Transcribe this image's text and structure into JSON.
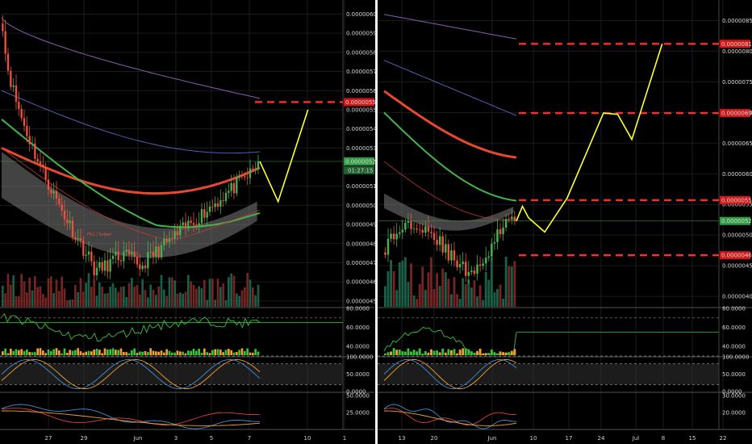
{
  "colors": {
    "background": "#000000",
    "grid": "#1b1b1b",
    "up_candle": "#4caf50",
    "down_candle": "#e8533f",
    "target_line": "#ff2a2a",
    "projection": "#ffff33",
    "price_label_current": "#2e9e44",
    "price_label_target": "#d01818",
    "ma_red": "#e8492e",
    "ma_green": "#45b34a",
    "ma_purple": "#8a5db0",
    "osc_green": "#37c437",
    "osc_orange": "#f0a030",
    "osc_blue": "#3f8fd8",
    "osc_red": "#e04040"
  },
  "chart_data": [
    {
      "type": "candlestick",
      "panel": "left",
      "price_axis_labels": [
        "0.00000600",
        "0.00000590",
        "0.00000580",
        "0.00000570",
        "0.00000560",
        "0.00000550",
        "0.00000540",
        "0.00000530",
        "0.00000510",
        "0.00000500",
        "0.00000490",
        "0.00000480",
        "0.00000470",
        "0.00000460",
        "0.00000450"
      ],
      "ylim": [
        4.47e-06,
        6.04e-06
      ],
      "current_price_label": "0.00000523",
      "countdown_label": "01:27:15",
      "target_price_label": "0.00000554",
      "target_levels": [
        5.54e-06
      ],
      "current_price": 5.23e-06,
      "projection_path": [
        [
          0,
          5.23e-06
        ],
        [
          0.22,
          5.02e-06
        ],
        [
          0.58,
          5.5e-06
        ]
      ],
      "x_tick_labels": [
        "27",
        "29",
        "Jun",
        "3",
        "5",
        "7",
        "10",
        "1"
      ],
      "annotation": "FR1 / Sniper",
      "ma_close": 5.01e-06,
      "stack_top": 4.92e-06,
      "stack_bottom": 4.84e-06,
      "rsi": {
        "axis_labels": [
          "80.0000",
          "60.0000",
          "40.0000"
        ],
        "ylim": [
          30,
          80
        ],
        "upper_band": 70,
        "lower_band": 30,
        "end_value": 65
      },
      "stoch": {
        "axis_labels": [
          "100.0000",
          "50.0000",
          "0.0000"
        ],
        "ylim": [
          0,
          100
        ],
        "upper_band": 80,
        "lower_band": 20
      },
      "dmi": {
        "axis_labels": [
          "50.0000",
          "25.0000"
        ],
        "ylim": [
          0,
          55
        ]
      }
    },
    {
      "type": "candlestick",
      "panel": "right",
      "price_axis_labels": [
        "0.00000850",
        "0.00000800",
        "0.00000750",
        "0.00000700",
        "0.00000650",
        "0.00000600",
        "0.00000550",
        "0.00000500",
        "0.00000450",
        "0.00000400"
      ],
      "ylim": [
        3.83e-06,
        8.73e-06
      ],
      "current_price_label": "0.00000523",
      "current_price": 5.23e-06,
      "target_price_labels": [
        "0.00000812",
        "0.00000699",
        "0.00000557",
        "0.00000467"
      ],
      "target_levels": [
        8.12e-06,
        6.99e-06,
        5.57e-06,
        4.67e-06
      ],
      "projection_path": [
        [
          0,
          5.23e-06
        ],
        [
          0.03,
          5.47e-06
        ],
        [
          0.06,
          5.28e-06
        ],
        [
          0.14,
          5.05e-06
        ],
        [
          0.25,
          5.6e-06
        ],
        [
          0.43,
          6.99e-06
        ],
        [
          0.5,
          6.97e-06
        ],
        [
          0.57,
          6.56e-06
        ],
        [
          0.72,
          8.12e-06
        ]
      ],
      "x_tick_labels": [
        "13",
        "20",
        "Jun",
        "10",
        "17",
        "24",
        "Jul",
        "8",
        "15",
        "22"
      ],
      "ma_close": 5.57e-06,
      "stack_top": 5.3e-06,
      "stack_bottom": 5.2e-06,
      "rsi": {
        "axis_labels": [
          "80.0000",
          "60.0000",
          "40.0000"
        ],
        "ylim": [
          30,
          80
        ],
        "upper_band": 70,
        "lower_band": 30,
        "end_value": 55
      },
      "stoch": {
        "axis_labels": [
          "100.0000",
          "50.0000",
          "0.0000"
        ],
        "ylim": [
          0,
          100
        ],
        "upper_band": 80,
        "lower_band": 20
      },
      "dmi": {
        "axis_labels": [
          "30.0000",
          "20.0000"
        ],
        "ylim": [
          10,
          32
        ]
      }
    }
  ]
}
